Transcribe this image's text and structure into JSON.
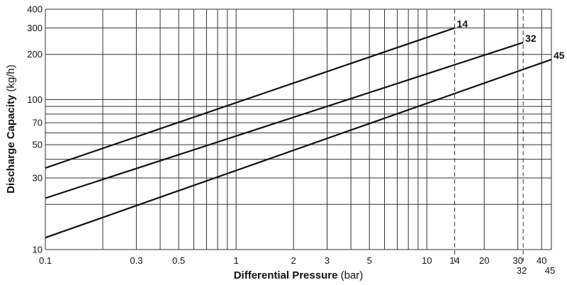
{
  "chart_data": {
    "type": "line",
    "x_scale": "log",
    "y_scale": "log",
    "xlim": [
      0.1,
      45
    ],
    "ylim": [
      10,
      400
    ],
    "xlabel_bold": "Differential Pressure",
    "xlabel_unit": " (bar)",
    "ylabel_bold": "Discharge Capacity",
    "ylabel_unit": " (kg/h)",
    "grid": true,
    "x_grid": [
      0.1,
      0.2,
      0.3,
      0.4,
      0.5,
      0.6,
      0.7,
      0.8,
      0.9,
      1,
      2,
      3,
      4,
      5,
      6,
      7,
      8,
      9,
      10,
      14,
      20,
      30,
      32,
      40,
      45
    ],
    "y_grid": [
      10,
      20,
      30,
      40,
      50,
      60,
      70,
      80,
      90,
      100,
      200,
      300,
      400
    ],
    "x_ticks": [
      {
        "value": 0.1,
        "label": "0.1"
      },
      {
        "value": 0.3,
        "label": "0.3"
      },
      {
        "value": 0.5,
        "label": "0.5"
      },
      {
        "value": 1,
        "label": "1"
      },
      {
        "value": 2,
        "label": "2"
      },
      {
        "value": 3,
        "label": "3"
      },
      {
        "value": 5,
        "label": "5"
      },
      {
        "value": 10,
        "label": "10"
      },
      {
        "value": 14,
        "label": "14"
      },
      {
        "value": 20,
        "label": "20"
      },
      {
        "value": 30,
        "label": "30"
      },
      {
        "value": 40,
        "label": "40"
      }
    ],
    "x_ticks_second_row": [
      {
        "value": 32,
        "label": "32"
      },
      {
        "value": 45,
        "label": "45"
      }
    ],
    "y_ticks": [
      {
        "value": 10,
        "label": "10"
      },
      {
        "value": 30,
        "label": "30"
      },
      {
        "value": 50,
        "label": "50"
      },
      {
        "value": 70,
        "label": "70"
      },
      {
        "value": 100,
        "label": "100"
      },
      {
        "value": 200,
        "label": "200"
      },
      {
        "value": 300,
        "label": "300"
      },
      {
        "value": 400,
        "label": "400"
      }
    ],
    "dashed_lines": [
      14,
      32
    ],
    "series": [
      {
        "name": "14",
        "x": [
          0.1,
          14
        ],
        "y": [
          35,
          300
        ]
      },
      {
        "name": "32",
        "x": [
          0.1,
          32
        ],
        "y": [
          22,
          240
        ]
      },
      {
        "name": "45",
        "x": [
          0.1,
          45
        ],
        "y": [
          12,
          185
        ]
      }
    ]
  }
}
